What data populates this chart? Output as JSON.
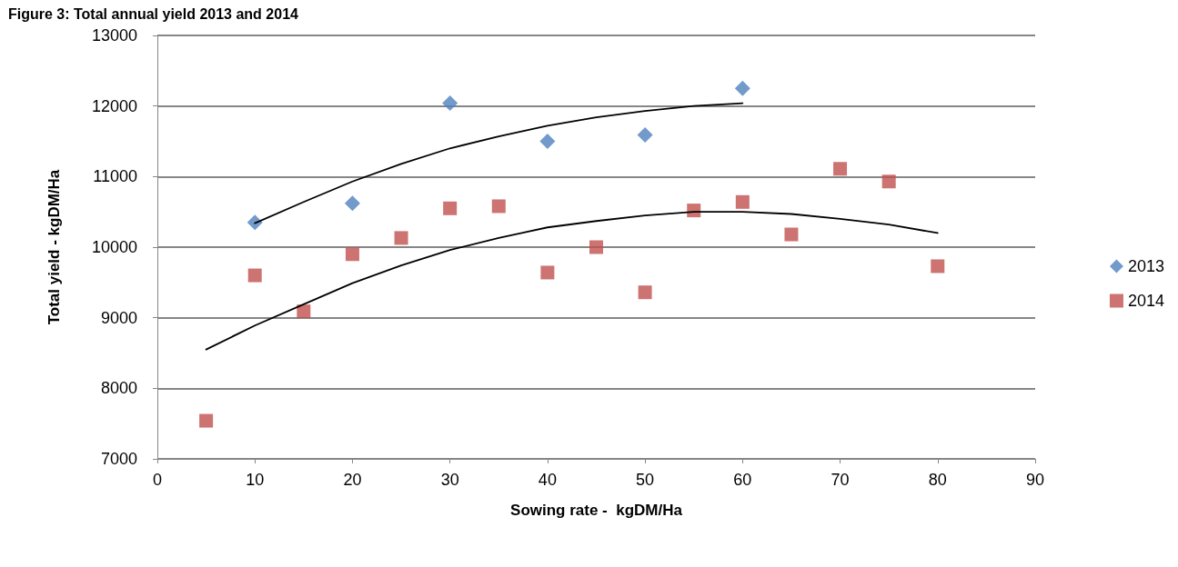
{
  "chart_data": {
    "type": "scatter",
    "title": "Figure 3: Total annual yield 2013 and 2014",
    "xlabel": "Sowing rate -  kgDM/Ha",
    "ylabel": "Total yield - kgDM/Ha",
    "xlim": [
      0,
      90
    ],
    "xticks": [
      0,
      10,
      20,
      30,
      40,
      50,
      60,
      70,
      80,
      90
    ],
    "ylim": [
      7000,
      13000
    ],
    "yticks": [
      7000,
      8000,
      9000,
      10000,
      11000,
      12000,
      13000
    ],
    "grid": "y",
    "legend": "right",
    "series": [
      {
        "name": "2013",
        "color": "#4f81bd",
        "marker": "diamond",
        "x": [
          10,
          20,
          30,
          40,
          50,
          60
        ],
        "values": [
          10350,
          10620,
          12040,
          11500,
          11590,
          12250
        ]
      },
      {
        "name": "2014",
        "color": "#c0504d",
        "marker": "square",
        "x": [
          5,
          10,
          15,
          20,
          25,
          30,
          35,
          40,
          45,
          50,
          55,
          60,
          65,
          70,
          75,
          80
        ],
        "values": [
          7540,
          9600,
          9090,
          9900,
          10130,
          10550,
          10580,
          9640,
          10000,
          9360,
          10520,
          10640,
          10180,
          11110,
          10930,
          9730
        ]
      },
      {
        "type": "line",
        "color": "#000000",
        "marker": "none",
        "line_style": "solid",
        "x": [
          10,
          15,
          20,
          25,
          30,
          35,
          40,
          45,
          50,
          55,
          60
        ],
        "values": [
          10340,
          10640,
          10930,
          11180,
          11400,
          11570,
          11720,
          11840,
          11930,
          12000,
          12040
        ]
      },
      {
        "type": "line",
        "color": "#000000",
        "marker": "none",
        "line_style": "solid",
        "x": [
          5,
          10,
          15,
          20,
          25,
          30,
          35,
          40,
          45,
          50,
          55,
          60,
          65,
          70,
          75,
          80
        ],
        "values": [
          8550,
          8890,
          9190,
          9490,
          9740,
          9960,
          10130,
          10280,
          10370,
          10450,
          10500,
          10500,
          10470,
          10400,
          10320,
          10200
        ]
      }
    ]
  }
}
